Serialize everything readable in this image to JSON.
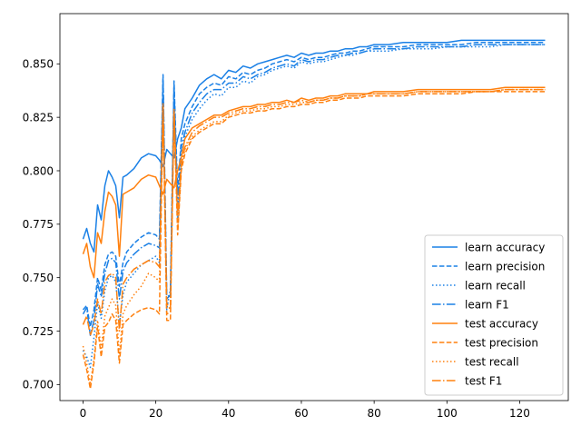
{
  "chart_data": {
    "type": "line",
    "title": "",
    "xlabel": "",
    "ylabel": "",
    "xlim": [
      -6.35,
      133.35
    ],
    "ylim": [
      0.6925,
      0.8735
    ],
    "x_ticks": [
      {
        "value": 0,
        "label": "0"
      },
      {
        "value": 20,
        "label": "20"
      },
      {
        "value": 40,
        "label": "40"
      },
      {
        "value": 60,
        "label": "60"
      },
      {
        "value": 80,
        "label": "80"
      },
      {
        "value": 100,
        "label": "100"
      },
      {
        "value": 120,
        "label": "120"
      }
    ],
    "y_ticks": [
      {
        "value": 0.7,
        "label": "0.700"
      },
      {
        "value": 0.725,
        "label": "0.725"
      },
      {
        "value": 0.75,
        "label": "0.750"
      },
      {
        "value": 0.775,
        "label": "0.775"
      },
      {
        "value": 0.8,
        "label": "0.800"
      },
      {
        "value": 0.825,
        "label": "0.825"
      },
      {
        "value": 0.85,
        "label": "0.850"
      }
    ],
    "grid": false,
    "legend_position": "lower-right",
    "series": [
      {
        "name": "learn accuracy",
        "color": "#1a80e6",
        "dash": "solid",
        "x": [
          0,
          1,
          2,
          3,
          4,
          5,
          6,
          7,
          8,
          9,
          10,
          11,
          12,
          14,
          16,
          18,
          20,
          21,
          22,
          23,
          24,
          25,
          26,
          27,
          28,
          30,
          32,
          34,
          36,
          38,
          40,
          42,
          44,
          46,
          48,
          50,
          52,
          54,
          56,
          58,
          60,
          62,
          64,
          66,
          68,
          70,
          72,
          74,
          76,
          78,
          80,
          84,
          88,
          92,
          96,
          100,
          104,
          108,
          112,
          116,
          120,
          124,
          127
        ],
        "y": [
          0.768,
          0.773,
          0.766,
          0.762,
          0.784,
          0.777,
          0.793,
          0.8,
          0.797,
          0.793,
          0.778,
          0.797,
          0.798,
          0.801,
          0.806,
          0.808,
          0.807,
          0.805,
          0.802,
          0.81,
          0.808,
          0.806,
          0.815,
          0.82,
          0.829,
          0.834,
          0.84,
          0.843,
          0.845,
          0.843,
          0.847,
          0.846,
          0.849,
          0.848,
          0.85,
          0.851,
          0.852,
          0.853,
          0.854,
          0.853,
          0.855,
          0.854,
          0.855,
          0.855,
          0.856,
          0.856,
          0.857,
          0.857,
          0.858,
          0.858,
          0.859,
          0.859,
          0.86,
          0.86,
          0.86,
          0.86,
          0.861,
          0.861,
          0.861,
          0.861,
          0.861,
          0.861,
          0.861
        ]
      },
      {
        "name": "learn precision",
        "color": "#1a80e6",
        "dash": "dashed",
        "x": [
          0,
          1,
          2,
          3,
          4,
          5,
          6,
          7,
          8,
          9,
          10,
          11,
          12,
          14,
          16,
          18,
          20,
          21,
          22,
          23,
          24,
          25,
          26,
          27,
          28,
          30,
          32,
          34,
          36,
          38,
          40,
          42,
          44,
          46,
          48,
          50,
          52,
          54,
          56,
          58,
          60,
          62,
          64,
          66,
          68,
          70,
          72,
          74,
          76,
          78,
          80,
          84,
          88,
          92,
          96,
          100,
          104,
          108,
          112,
          116,
          120,
          124,
          127
        ],
        "y": [
          0.735,
          0.737,
          0.727,
          0.735,
          0.75,
          0.744,
          0.756,
          0.761,
          0.762,
          0.76,
          0.746,
          0.757,
          0.762,
          0.766,
          0.769,
          0.771,
          0.77,
          0.768,
          0.845,
          0.742,
          0.741,
          0.842,
          0.79,
          0.815,
          0.822,
          0.83,
          0.836,
          0.839,
          0.841,
          0.84,
          0.844,
          0.843,
          0.846,
          0.845,
          0.847,
          0.848,
          0.85,
          0.851,
          0.852,
          0.851,
          0.853,
          0.852,
          0.853,
          0.853,
          0.854,
          0.855,
          0.855,
          0.856,
          0.856,
          0.857,
          0.858,
          0.858,
          0.858,
          0.859,
          0.859,
          0.859,
          0.859,
          0.86,
          0.86,
          0.86,
          0.86,
          0.86,
          0.86
        ]
      },
      {
        "name": "learn recall",
        "color": "#1a80e6",
        "dash": "dotted",
        "x": [
          0,
          1,
          2,
          3,
          4,
          5,
          6,
          7,
          8,
          9,
          10,
          11,
          12,
          14,
          16,
          18,
          20,
          21,
          22,
          23,
          24,
          25,
          26,
          27,
          28,
          30,
          32,
          34,
          36,
          38,
          40,
          42,
          44,
          46,
          48,
          50,
          52,
          54,
          56,
          58,
          60,
          62,
          64,
          66,
          68,
          70,
          72,
          74,
          76,
          78,
          80,
          84,
          88,
          92,
          96,
          100,
          104,
          108,
          112,
          116,
          120,
          124,
          127
        ],
        "y": [
          0.716,
          0.713,
          0.708,
          0.722,
          0.738,
          0.731,
          0.744,
          0.75,
          0.751,
          0.748,
          0.728,
          0.742,
          0.748,
          0.752,
          0.756,
          0.758,
          0.76,
          0.757,
          0.842,
          0.735,
          0.745,
          0.838,
          0.776,
          0.807,
          0.816,
          0.824,
          0.829,
          0.833,
          0.836,
          0.835,
          0.839,
          0.839,
          0.842,
          0.841,
          0.844,
          0.845,
          0.847,
          0.848,
          0.849,
          0.848,
          0.851,
          0.85,
          0.851,
          0.851,
          0.852,
          0.853,
          0.854,
          0.854,
          0.855,
          0.856,
          0.856,
          0.856,
          0.857,
          0.857,
          0.857,
          0.858,
          0.858,
          0.858,
          0.858,
          0.859,
          0.859,
          0.859,
          0.859
        ]
      },
      {
        "name": "learn F1",
        "color": "#1a80e6",
        "dash": "dashdot",
        "x": [
          0,
          1,
          2,
          3,
          4,
          5,
          6,
          7,
          8,
          9,
          10,
          11,
          12,
          14,
          16,
          18,
          20,
          21,
          22,
          23,
          24,
          25,
          26,
          27,
          28,
          30,
          32,
          34,
          36,
          38,
          40,
          42,
          44,
          46,
          48,
          50,
          52,
          54,
          56,
          58,
          60,
          62,
          64,
          66,
          68,
          70,
          72,
          74,
          76,
          78,
          80,
          84,
          88,
          92,
          96,
          100,
          104,
          108,
          112,
          116,
          120,
          124,
          127
        ],
        "y": [
          0.733,
          0.736,
          0.723,
          0.73,
          0.747,
          0.741,
          0.752,
          0.758,
          0.759,
          0.757,
          0.74,
          0.753,
          0.757,
          0.761,
          0.764,
          0.766,
          0.765,
          0.764,
          0.843,
          0.74,
          0.742,
          0.84,
          0.784,
          0.811,
          0.818,
          0.827,
          0.832,
          0.836,
          0.838,
          0.838,
          0.841,
          0.841,
          0.844,
          0.843,
          0.845,
          0.846,
          0.848,
          0.849,
          0.85,
          0.849,
          0.852,
          0.851,
          0.852,
          0.852,
          0.853,
          0.854,
          0.854,
          0.855,
          0.855,
          0.856,
          0.857,
          0.857,
          0.857,
          0.858,
          0.858,
          0.858,
          0.858,
          0.859,
          0.859,
          0.859,
          0.859,
          0.859,
          0.859
        ]
      },
      {
        "name": "test accuracy",
        "color": "#ff800e",
        "dash": "solid",
        "x": [
          0,
          1,
          2,
          3,
          4,
          5,
          6,
          7,
          8,
          9,
          10,
          11,
          12,
          14,
          16,
          18,
          20,
          21,
          22,
          23,
          24,
          25,
          26,
          27,
          28,
          30,
          32,
          34,
          36,
          38,
          40,
          42,
          44,
          46,
          48,
          50,
          52,
          54,
          56,
          58,
          60,
          62,
          64,
          66,
          68,
          70,
          72,
          74,
          76,
          78,
          80,
          84,
          88,
          92,
          96,
          100,
          104,
          108,
          112,
          116,
          120,
          124,
          127
        ],
        "y": [
          0.761,
          0.766,
          0.755,
          0.75,
          0.771,
          0.766,
          0.781,
          0.79,
          0.788,
          0.784,
          0.76,
          0.789,
          0.79,
          0.792,
          0.796,
          0.798,
          0.797,
          0.793,
          0.789,
          0.796,
          0.794,
          0.792,
          0.8,
          0.806,
          0.815,
          0.82,
          0.822,
          0.824,
          0.826,
          0.826,
          0.828,
          0.829,
          0.83,
          0.83,
          0.831,
          0.831,
          0.832,
          0.832,
          0.833,
          0.832,
          0.834,
          0.833,
          0.834,
          0.834,
          0.835,
          0.835,
          0.836,
          0.836,
          0.836,
          0.836,
          0.837,
          0.837,
          0.837,
          0.838,
          0.838,
          0.838,
          0.838,
          0.838,
          0.838,
          0.839,
          0.839,
          0.839,
          0.839
        ]
      },
      {
        "name": "test precision",
        "color": "#ff800e",
        "dash": "dashed",
        "x": [
          0,
          1,
          2,
          3,
          4,
          5,
          6,
          7,
          8,
          9,
          10,
          11,
          12,
          14,
          16,
          18,
          20,
          21,
          22,
          23,
          24,
          25,
          26,
          27,
          28,
          30,
          32,
          34,
          36,
          38,
          40,
          42,
          44,
          46,
          48,
          50,
          52,
          54,
          56,
          58,
          60,
          62,
          64,
          66,
          68,
          70,
          72,
          74,
          76,
          78,
          80,
          84,
          88,
          92,
          96,
          100,
          104,
          108,
          112,
          116,
          120,
          124,
          127
        ],
        "y": [
          0.714,
          0.707,
          0.698,
          0.71,
          0.727,
          0.713,
          0.727,
          0.729,
          0.733,
          0.73,
          0.71,
          0.728,
          0.73,
          0.733,
          0.735,
          0.736,
          0.735,
          0.733,
          0.83,
          0.73,
          0.73,
          0.828,
          0.77,
          0.8,
          0.808,
          0.815,
          0.818,
          0.82,
          0.822,
          0.822,
          0.825,
          0.826,
          0.827,
          0.827,
          0.828,
          0.828,
          0.829,
          0.829,
          0.83,
          0.83,
          0.831,
          0.831,
          0.832,
          0.832,
          0.833,
          0.833,
          0.834,
          0.834,
          0.834,
          0.835,
          0.835,
          0.835,
          0.835,
          0.836,
          0.836,
          0.836,
          0.836,
          0.837,
          0.837,
          0.837,
          0.837,
          0.837,
          0.837
        ]
      },
      {
        "name": "test recall",
        "color": "#ff800e",
        "dash": "dotted",
        "x": [
          0,
          1,
          2,
          3,
          4,
          5,
          6,
          7,
          8,
          9,
          10,
          11,
          12,
          14,
          16,
          18,
          20,
          21,
          22,
          23,
          24,
          25,
          26,
          27,
          28,
          30,
          32,
          34,
          36,
          38,
          40,
          42,
          44,
          46,
          48,
          50,
          52,
          54,
          56,
          58,
          60,
          62,
          64,
          66,
          68,
          70,
          72,
          74,
          76,
          78,
          80,
          84,
          88,
          92,
          96,
          100,
          104,
          108,
          112,
          116,
          120,
          124,
          127
        ],
        "y": [
          0.718,
          0.71,
          0.7,
          0.712,
          0.73,
          0.717,
          0.732,
          0.736,
          0.74,
          0.737,
          0.714,
          0.733,
          0.737,
          0.742,
          0.746,
          0.752,
          0.75,
          0.748,
          0.832,
          0.733,
          0.734,
          0.829,
          0.772,
          0.802,
          0.81,
          0.816,
          0.819,
          0.821,
          0.823,
          0.823,
          0.826,
          0.827,
          0.828,
          0.828,
          0.829,
          0.829,
          0.83,
          0.83,
          0.831,
          0.831,
          0.832,
          0.832,
          0.833,
          0.833,
          0.834,
          0.834,
          0.835,
          0.835,
          0.835,
          0.836,
          0.836,
          0.836,
          0.836,
          0.837,
          0.837,
          0.837,
          0.837,
          0.837,
          0.837,
          0.838,
          0.838,
          0.838,
          0.838
        ]
      },
      {
        "name": "test F1",
        "color": "#ff800e",
        "dash": "dashdot",
        "x": [
          0,
          1,
          2,
          3,
          4,
          5,
          6,
          7,
          8,
          9,
          10,
          11,
          12,
          14,
          16,
          18,
          20,
          21,
          22,
          23,
          24,
          25,
          26,
          27,
          28,
          30,
          32,
          34,
          36,
          38,
          40,
          42,
          44,
          46,
          48,
          50,
          52,
          54,
          56,
          58,
          60,
          62,
          64,
          66,
          68,
          70,
          72,
          74,
          76,
          78,
          80,
          84,
          88,
          92,
          96,
          100,
          104,
          108,
          112,
          116,
          120,
          124,
          127
        ],
        "y": [
          0.728,
          0.732,
          0.723,
          0.728,
          0.74,
          0.733,
          0.748,
          0.751,
          0.752,
          0.75,
          0.725,
          0.747,
          0.75,
          0.754,
          0.756,
          0.758,
          0.757,
          0.755,
          0.831,
          0.738,
          0.735,
          0.828,
          0.78,
          0.803,
          0.811,
          0.818,
          0.821,
          0.823,
          0.825,
          0.825,
          0.827,
          0.828,
          0.829,
          0.829,
          0.83,
          0.83,
          0.831,
          0.831,
          0.832,
          0.832,
          0.833,
          0.832,
          0.833,
          0.833,
          0.834,
          0.834,
          0.835,
          0.835,
          0.835,
          0.836,
          0.836,
          0.836,
          0.836,
          0.837,
          0.837,
          0.837,
          0.837,
          0.837,
          0.837,
          0.838,
          0.838,
          0.838,
          0.838
        ]
      }
    ]
  }
}
